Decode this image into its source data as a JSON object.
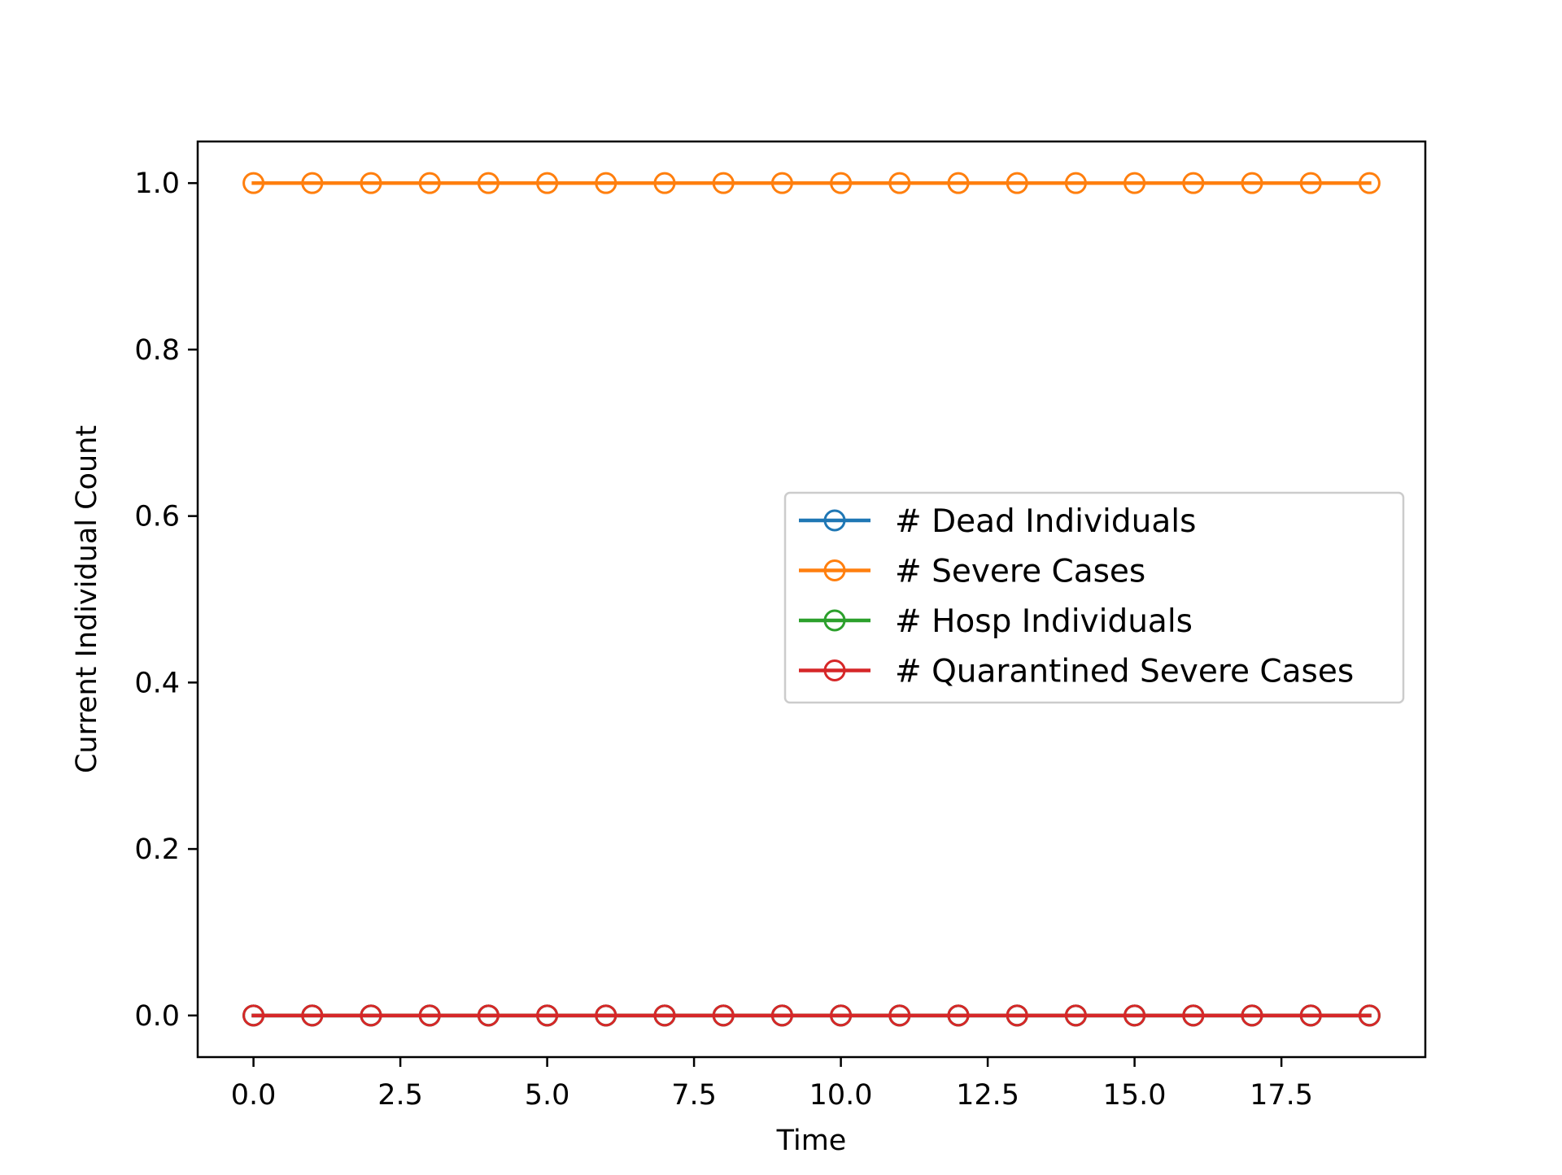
{
  "chart_data": {
    "type": "line",
    "title": "",
    "xlabel": "Time",
    "ylabel": "Current Individual Count",
    "xlim": [
      -0.95,
      19.95
    ],
    "ylim": [
      -0.05,
      1.05
    ],
    "xticks": [
      0.0,
      2.5,
      5.0,
      7.5,
      10.0,
      12.5,
      15.0,
      17.5
    ],
    "xtick_labels": [
      "0.0",
      "2.5",
      "5.0",
      "7.5",
      "10.0",
      "12.5",
      "15.0",
      "17.5"
    ],
    "yticks": [
      0.0,
      0.2,
      0.4,
      0.6,
      0.8,
      1.0
    ],
    "ytick_labels": [
      "0.0",
      "0.2",
      "0.4",
      "0.6",
      "0.8",
      "1.0"
    ],
    "grid": false,
    "legend_position": "center-right",
    "x": [
      0,
      1,
      2,
      3,
      4,
      5,
      6,
      7,
      8,
      9,
      10,
      11,
      12,
      13,
      14,
      15,
      16,
      17,
      18,
      19
    ],
    "series": [
      {
        "name": "# Dead Individuals",
        "color": "#1f77b4",
        "marker": "open-circle",
        "values": [
          0,
          0,
          0,
          0,
          0,
          0,
          0,
          0,
          0,
          0,
          0,
          0,
          0,
          0,
          0,
          0,
          0,
          0,
          0,
          0
        ]
      },
      {
        "name": "# Severe Cases",
        "color": "#ff7f0e",
        "marker": "open-circle",
        "values": [
          1,
          1,
          1,
          1,
          1,
          1,
          1,
          1,
          1,
          1,
          1,
          1,
          1,
          1,
          1,
          1,
          1,
          1,
          1,
          1
        ]
      },
      {
        "name": "# Hosp Individuals",
        "color": "#2ca02c",
        "marker": "open-circle",
        "values": [
          0,
          0,
          0,
          0,
          0,
          0,
          0,
          0,
          0,
          0,
          0,
          0,
          0,
          0,
          0,
          0,
          0,
          0,
          0,
          0
        ]
      },
      {
        "name": "# Quarantined Severe Cases",
        "color": "#d62728",
        "marker": "open-circle",
        "values": [
          0,
          0,
          0,
          0,
          0,
          0,
          0,
          0,
          0,
          0,
          0,
          0,
          0,
          0,
          0,
          0,
          0,
          0,
          0,
          0
        ]
      }
    ]
  }
}
